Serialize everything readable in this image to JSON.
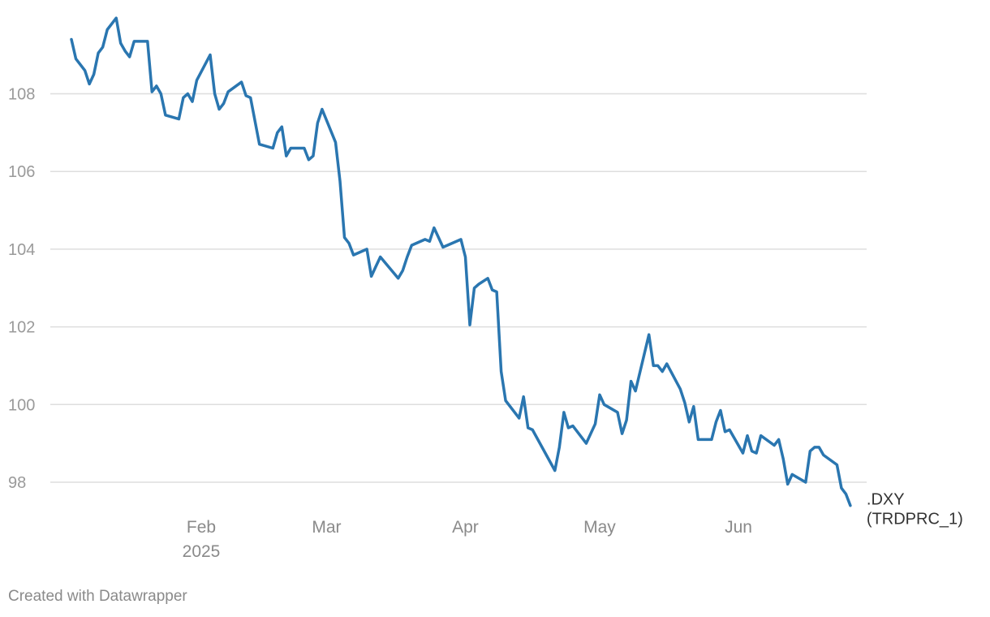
{
  "chart_data": {
    "type": "line",
    "title": "",
    "xlabel": "",
    "ylabel": "",
    "ylim": [
      97.0,
      110.0
    ],
    "yticks": [
      98,
      100,
      102,
      104,
      106,
      108
    ],
    "xticks": [
      {
        "date": "2025-02-01",
        "label": "Feb",
        "sublabel": "2025"
      },
      {
        "date": "2025-03-01",
        "label": "Mar",
        "sublabel": ""
      },
      {
        "date": "2025-04-01",
        "label": "Apr",
        "sublabel": ""
      },
      {
        "date": "2025-05-01",
        "label": "May",
        "sublabel": ""
      },
      {
        "date": "2025-06-01",
        "label": "Jun",
        "sublabel": ""
      }
    ],
    "grid": true,
    "colors": {
      "line": "#2a76b0",
      "grid": "#dedede"
    },
    "series": [
      {
        "name": ".DXY (TRDPRC_1)",
        "label_lines": [
          ".DXY",
          "(TRDPRC_1)"
        ],
        "points": [
          [
            "2025-01-03",
            109.4
          ],
          [
            "2025-01-04",
            108.9
          ],
          [
            "2025-01-06",
            108.6
          ],
          [
            "2025-01-07",
            108.25
          ],
          [
            "2025-01-08",
            108.5
          ],
          [
            "2025-01-09",
            109.05
          ],
          [
            "2025-01-10",
            109.2
          ],
          [
            "2025-01-11",
            109.65
          ],
          [
            "2025-01-13",
            109.95
          ],
          [
            "2025-01-14",
            109.3
          ],
          [
            "2025-01-15",
            109.1
          ],
          [
            "2025-01-16",
            108.95
          ],
          [
            "2025-01-17",
            109.35
          ],
          [
            "2025-01-20",
            109.35
          ],
          [
            "2025-01-21",
            108.05
          ],
          [
            "2025-01-22",
            108.2
          ],
          [
            "2025-01-23",
            108.0
          ],
          [
            "2025-01-24",
            107.45
          ],
          [
            "2025-01-27",
            107.35
          ],
          [
            "2025-01-28",
            107.9
          ],
          [
            "2025-01-29",
            108.0
          ],
          [
            "2025-01-30",
            107.8
          ],
          [
            "2025-01-31",
            108.35
          ],
          [
            "2025-02-03",
            109.0
          ],
          [
            "2025-02-04",
            108.0
          ],
          [
            "2025-02-05",
            107.6
          ],
          [
            "2025-02-06",
            107.75
          ],
          [
            "2025-02-07",
            108.05
          ],
          [
            "2025-02-10",
            108.3
          ],
          [
            "2025-02-11",
            107.95
          ],
          [
            "2025-02-12",
            107.9
          ],
          [
            "2025-02-14",
            106.7
          ],
          [
            "2025-02-17",
            106.6
          ],
          [
            "2025-02-18",
            107.0
          ],
          [
            "2025-02-19",
            107.15
          ],
          [
            "2025-02-20",
            106.4
          ],
          [
            "2025-02-21",
            106.6
          ],
          [
            "2025-02-24",
            106.6
          ],
          [
            "2025-02-25",
            106.3
          ],
          [
            "2025-02-26",
            106.4
          ],
          [
            "2025-02-27",
            107.25
          ],
          [
            "2025-02-28",
            107.6
          ],
          [
            "2025-03-03",
            106.75
          ],
          [
            "2025-03-04",
            105.75
          ],
          [
            "2025-03-05",
            104.3
          ],
          [
            "2025-03-06",
            104.15
          ],
          [
            "2025-03-07",
            103.85
          ],
          [
            "2025-03-10",
            104.0
          ],
          [
            "2025-03-11",
            103.3
          ],
          [
            "2025-03-12",
            103.55
          ],
          [
            "2025-03-13",
            103.8
          ],
          [
            "2025-03-17",
            103.25
          ],
          [
            "2025-03-18",
            103.45
          ],
          [
            "2025-03-19",
            103.8
          ],
          [
            "2025-03-20",
            104.1
          ],
          [
            "2025-03-23",
            104.25
          ],
          [
            "2025-03-24",
            104.2
          ],
          [
            "2025-03-25",
            104.55
          ],
          [
            "2025-03-26",
            104.3
          ],
          [
            "2025-03-27",
            104.05
          ],
          [
            "2025-03-31",
            104.25
          ],
          [
            "2025-04-01",
            103.8
          ],
          [
            "2025-04-02",
            102.05
          ],
          [
            "2025-04-03",
            103.0
          ],
          [
            "2025-04-04",
            103.1
          ],
          [
            "2025-04-06",
            103.25
          ],
          [
            "2025-04-07",
            102.95
          ],
          [
            "2025-04-08",
            102.9
          ],
          [
            "2025-04-09",
            100.85
          ],
          [
            "2025-04-10",
            100.1
          ],
          [
            "2025-04-13",
            99.65
          ],
          [
            "2025-04-14",
            100.2
          ],
          [
            "2025-04-15",
            99.4
          ],
          [
            "2025-04-16",
            99.35
          ],
          [
            "2025-04-21",
            98.3
          ],
          [
            "2025-04-22",
            98.9
          ],
          [
            "2025-04-23",
            99.8
          ],
          [
            "2025-04-24",
            99.4
          ],
          [
            "2025-04-25",
            99.45
          ],
          [
            "2025-04-28",
            99.0
          ],
          [
            "2025-04-30",
            99.5
          ],
          [
            "2025-05-01",
            100.25
          ],
          [
            "2025-05-02",
            100.0
          ],
          [
            "2025-05-05",
            99.8
          ],
          [
            "2025-05-06",
            99.25
          ],
          [
            "2025-05-07",
            99.6
          ],
          [
            "2025-05-08",
            100.6
          ],
          [
            "2025-05-09",
            100.35
          ],
          [
            "2025-05-12",
            101.8
          ],
          [
            "2025-05-13",
            101.0
          ],
          [
            "2025-05-14",
            101.0
          ],
          [
            "2025-05-15",
            100.85
          ],
          [
            "2025-05-16",
            101.05
          ],
          [
            "2025-05-19",
            100.4
          ],
          [
            "2025-05-20",
            100.05
          ],
          [
            "2025-05-21",
            99.55
          ],
          [
            "2025-05-22",
            99.95
          ],
          [
            "2025-05-23",
            99.1
          ],
          [
            "2025-05-26",
            99.1
          ],
          [
            "2025-05-27",
            99.55
          ],
          [
            "2025-05-28",
            99.85
          ],
          [
            "2025-05-29",
            99.3
          ],
          [
            "2025-05-30",
            99.35
          ],
          [
            "2025-06-02",
            98.75
          ],
          [
            "2025-06-03",
            99.2
          ],
          [
            "2025-06-04",
            98.8
          ],
          [
            "2025-06-05",
            98.75
          ],
          [
            "2025-06-06",
            99.2
          ],
          [
            "2025-06-09",
            98.95
          ],
          [
            "2025-06-10",
            99.1
          ],
          [
            "2025-06-11",
            98.6
          ],
          [
            "2025-06-12",
            97.95
          ],
          [
            "2025-06-13",
            98.2
          ],
          [
            "2025-06-16",
            98.0
          ],
          [
            "2025-06-17",
            98.8
          ],
          [
            "2025-06-18",
            98.9
          ],
          [
            "2025-06-19",
            98.9
          ],
          [
            "2025-06-20",
            98.7
          ],
          [
            "2025-06-23",
            98.45
          ],
          [
            "2025-06-24",
            97.85
          ],
          [
            "2025-06-25",
            97.7
          ],
          [
            "2025-06-26",
            97.4
          ]
        ]
      }
    ]
  },
  "footer": {
    "credit": "Created with Datawrapper"
  }
}
